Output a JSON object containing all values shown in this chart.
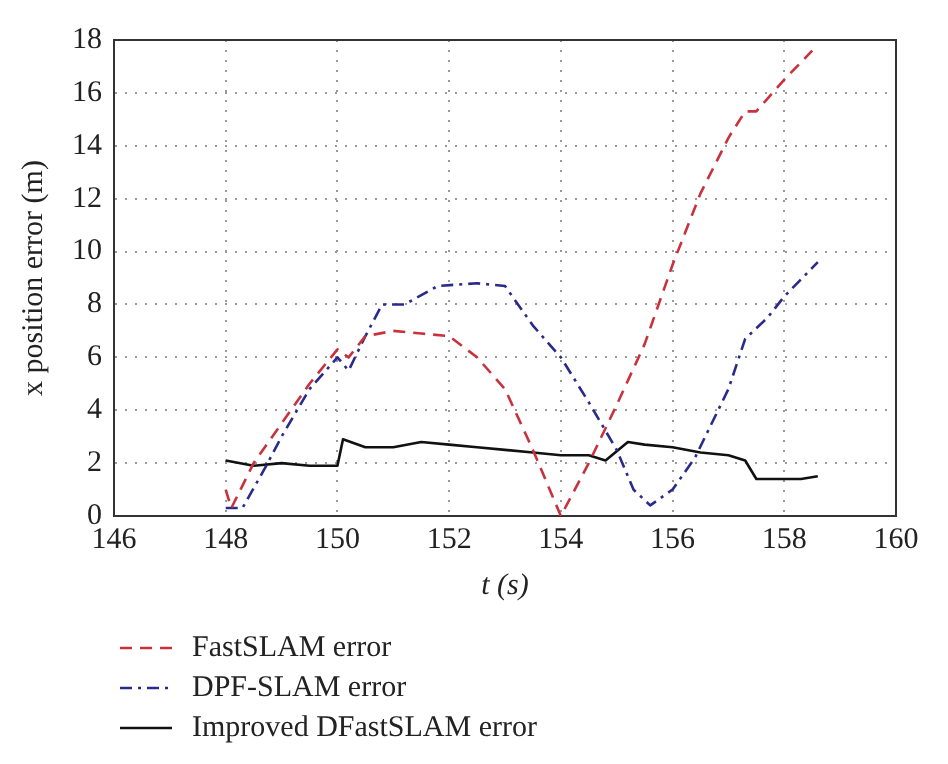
{
  "chart_data": {
    "type": "line",
    "xlabel": "t (s)",
    "ylabel": "x position error (m)",
    "xlim": [
      146,
      160
    ],
    "xticks": [
      146,
      148,
      150,
      152,
      154,
      156,
      158,
      160
    ],
    "ylim": [
      0,
      18
    ],
    "yticks": [
      0,
      2,
      4,
      6,
      8,
      10,
      12,
      14,
      16,
      18
    ],
    "grid": true,
    "legend": "bottom",
    "marker": "none",
    "series": [
      {
        "name": "FastSLAM error",
        "color": "#c8323c",
        "line_style": "dashed",
        "x": [
          148,
          148.1,
          148.5,
          149,
          149.5,
          150,
          150.2,
          150.5,
          151,
          151.5,
          152,
          152.5,
          153,
          153.5,
          154,
          154.5,
          155,
          155.5,
          156,
          156.5,
          157,
          157.3,
          157.5,
          158,
          158.5
        ],
        "values": [
          1.0,
          0.3,
          2,
          3.5,
          5,
          6.3,
          6.0,
          6.8,
          7.0,
          6.9,
          6.8,
          6.0,
          4.8,
          2.5,
          0,
          2,
          4.2,
          6.5,
          9.5,
          12.2,
          14.3,
          15.3,
          15.3,
          16.5,
          17.6
        ]
      },
      {
        "name": "DPF-SLAM error",
        "color": "#2a2a8c",
        "line_style": "dashdot",
        "x": [
          148,
          148.3,
          148.7,
          149,
          149.5,
          150,
          150.2,
          150.5,
          150.8,
          151.2,
          151.8,
          152.5,
          153,
          153.5,
          154,
          154.5,
          155,
          155.3,
          155.6,
          156,
          156.4,
          157,
          157.3,
          157.7,
          158,
          158.6
        ],
        "values": [
          0.3,
          0.3,
          1.8,
          3,
          4.8,
          6,
          5.5,
          6.8,
          8,
          8,
          8.7,
          8.8,
          8.7,
          7.2,
          6,
          4.3,
          2.5,
          1.0,
          0.4,
          1.0,
          2.2,
          4.8,
          6.7,
          7.5,
          8.3,
          9.6
        ]
      },
      {
        "name": "Improved DFastSLAM error",
        "color": "#111111",
        "line_style": "solid",
        "x": [
          148,
          148.5,
          149,
          149.5,
          150,
          150.1,
          150.5,
          151,
          151.5,
          152,
          152.5,
          153,
          153.5,
          154,
          154.5,
          154.8,
          155.2,
          155.5,
          156,
          156.5,
          157,
          157.3,
          157.5,
          158,
          158.3,
          158.6
        ],
        "values": [
          2.1,
          1.9,
          2.0,
          1.9,
          1.9,
          2.9,
          2.6,
          2.6,
          2.8,
          2.7,
          2.6,
          2.5,
          2.4,
          2.3,
          2.3,
          2.1,
          2.8,
          2.7,
          2.6,
          2.4,
          2.3,
          2.1,
          1.4,
          1.4,
          1.4,
          1.5
        ]
      }
    ]
  }
}
